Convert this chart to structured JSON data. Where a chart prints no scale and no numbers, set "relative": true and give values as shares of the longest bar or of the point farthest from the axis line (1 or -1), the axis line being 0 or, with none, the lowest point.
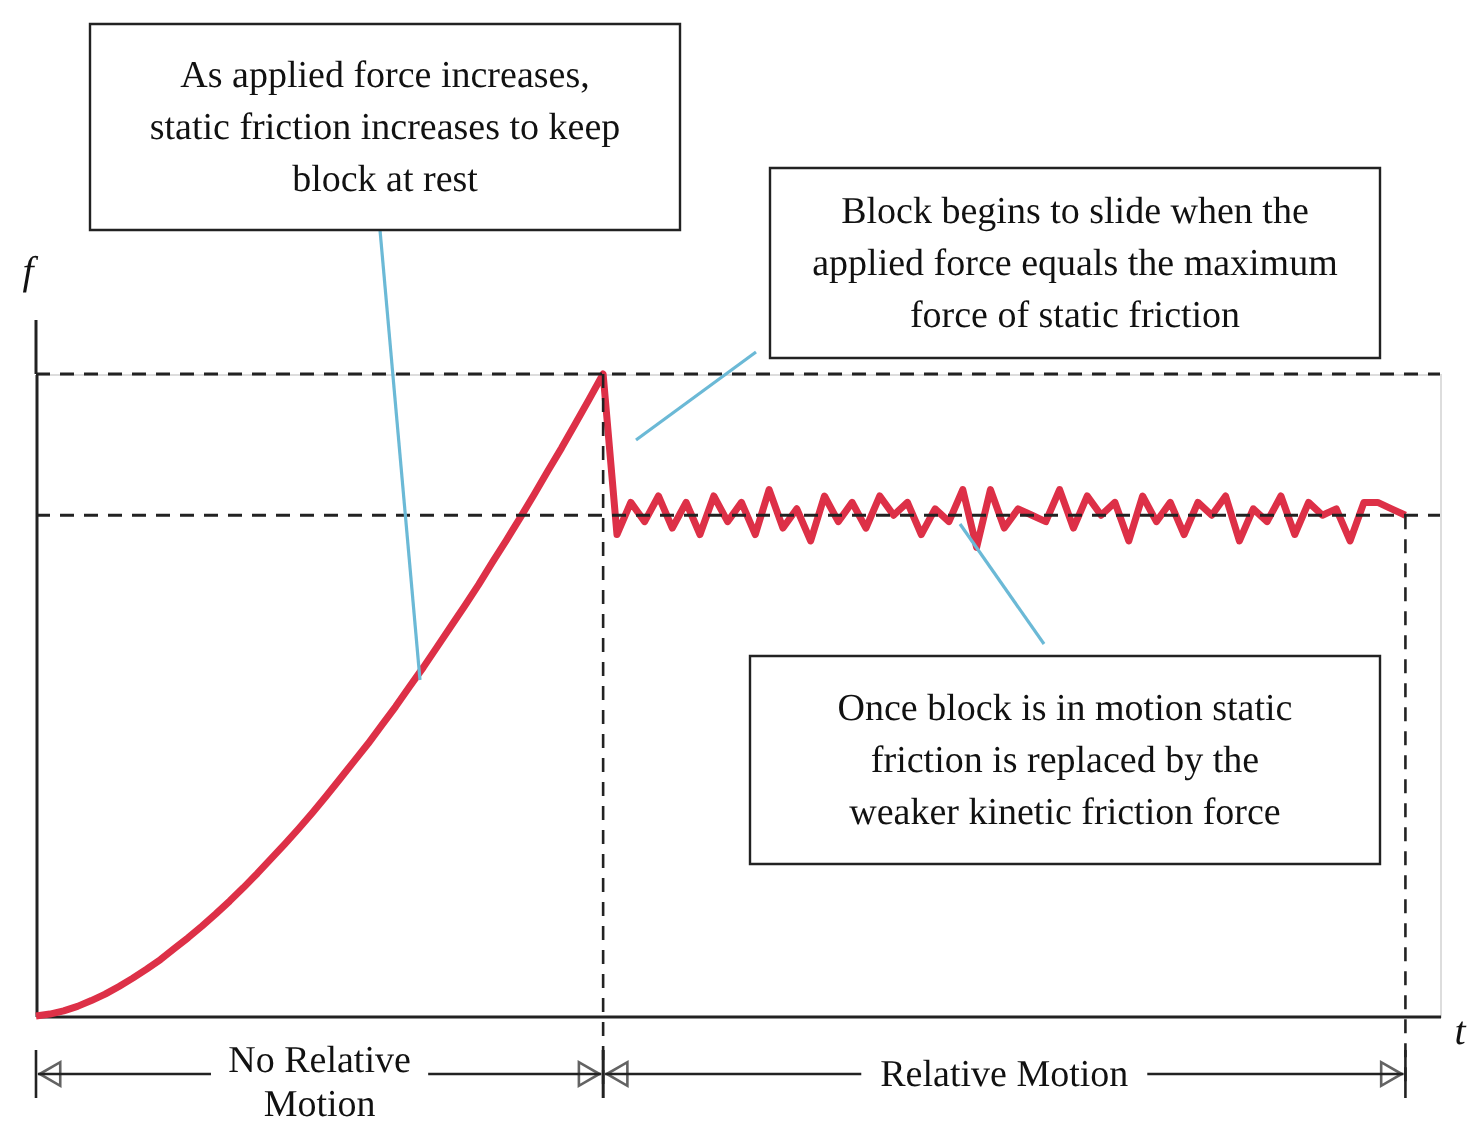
{
  "chart_data": {
    "type": "line",
    "relative": true,
    "tick_labels": false,
    "color": "#dd3047",
    "line_style": "solid",
    "ylabel": "f",
    "xlabel": "t",
    "categories": [
      null,
      null,
      null,
      null,
      null,
      null,
      null,
      null,
      null,
      null,
      null,
      null,
      null,
      null,
      null,
      null,
      null,
      null,
      null,
      null,
      null,
      null,
      null,
      null,
      null,
      null,
      null,
      null,
      null,
      null,
      null,
      null,
      null,
      null,
      null,
      null,
      null,
      null,
      null,
      null,
      null,
      null,
      null,
      null,
      null,
      null,
      null,
      null,
      null,
      null,
      null,
      null,
      null,
      null,
      null,
      null,
      null,
      null,
      null,
      null,
      null,
      null,
      null,
      null,
      null,
      null,
      null,
      null,
      null,
      null,
      null,
      null,
      null,
      null,
      null,
      null,
      null,
      null,
      null,
      null,
      null,
      null,
      null,
      null,
      null,
      null,
      null,
      null,
      null,
      null,
      null,
      null,
      null,
      null,
      null,
      null,
      null,
      null,
      null,
      null
    ],
    "values": [
      0,
      0.003,
      0.008,
      0.015,
      0.024,
      0.034,
      0.046,
      0.059,
      0.073,
      0.088,
      0.105,
      0.122,
      0.14,
      0.159,
      0.179,
      0.2,
      0.222,
      0.245,
      0.268,
      0.292,
      0.317,
      0.343,
      0.37,
      0.397,
      0.424,
      0.453,
      0.482,
      0.513,
      0.543,
      0.575,
      0.607,
      0.639,
      0.672,
      0.707,
      0.741,
      0.776,
      0.812,
      0.849,
      0.885,
      0.923,
      0.961,
      1,
      0.75,
      0.8,
      0.77,
      0.81,
      0.76,
      0.8,
      0.75,
      0.81,
      0.77,
      0.8,
      0.75,
      0.82,
      0.76,
      0.79,
      0.74,
      0.81,
      0.77,
      0.8,
      0.76,
      0.81,
      0.78,
      0.8,
      0.75,
      0.79,
      0.77,
      0.82,
      0.73,
      0.82,
      0.76,
      0.79,
      0.78,
      0.77,
      0.82,
      0.76,
      0.81,
      0.78,
      0.8,
      0.74,
      0.81,
      0.77,
      0.8,
      0.75,
      0.8,
      0.78,
      0.81,
      0.74,
      0.79,
      0.77,
      0.81,
      0.75,
      0.8,
      0.78,
      0.79,
      0.74,
      0.8,
      0.8,
      0.79,
      0.78
    ],
    "ref_lines": [
      {
        "axis": "y",
        "value": 1,
        "line_style": "dashed",
        "color": "#222222"
      },
      {
        "axis": "y",
        "value": 0.78,
        "line_style": "dashed",
        "color": "#222222"
      }
    ],
    "annotations": [
      "As applied force increases, static friction increases to keep block at rest",
      "Block begins to slide when the applied force equals the maximum force of static friction",
      "Once block is in motion static friction is replaced by the weaker kinetic friction force",
      "No Relative Motion",
      "Relative Motion"
    ]
  }
}
